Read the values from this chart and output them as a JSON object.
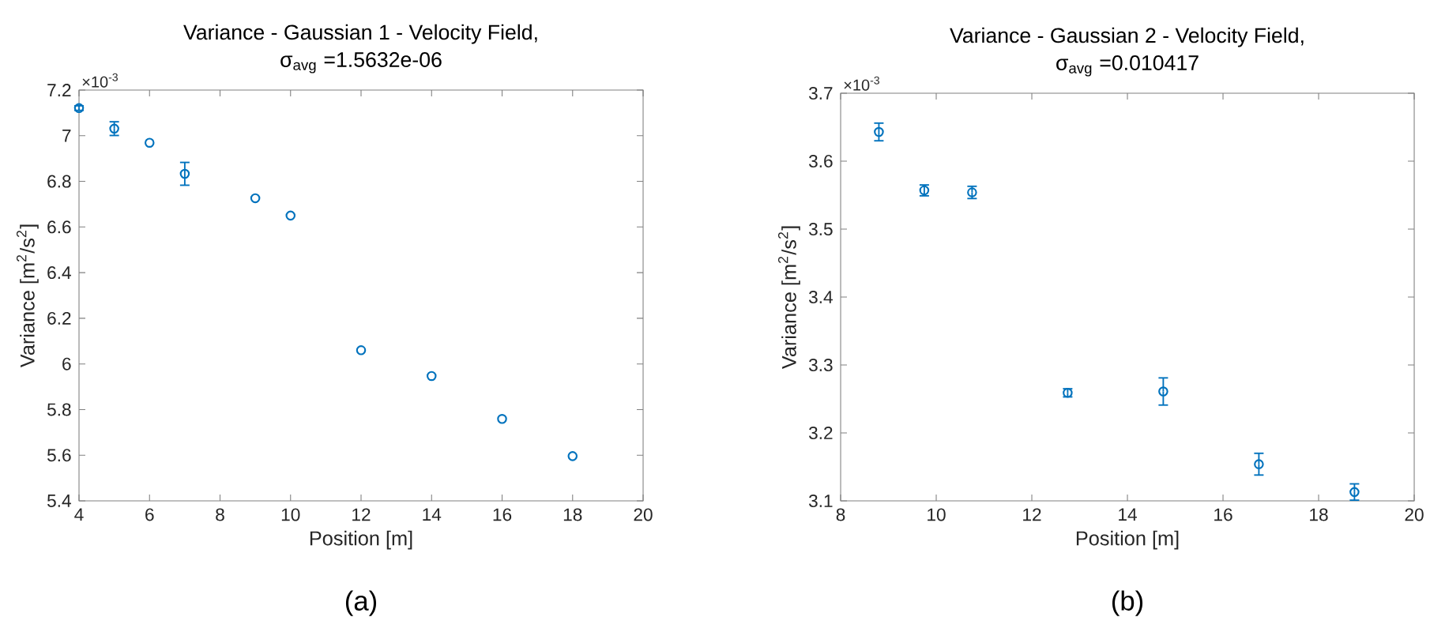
{
  "chart_data": [
    {
      "type": "scatter",
      "title": "Variance -  Gaussian 1 - Velocity Field,",
      "subtitle": "σ$_{avg}$ =1.5632e-06",
      "xlabel": "Position [m]",
      "ylabel": "Variance [m$^{2}$/s$^{2}$]",
      "x": [
        4,
        5,
        6,
        7,
        9,
        10,
        12,
        14,
        16,
        18
      ],
      "series": [
        {
          "color": "#0072bd",
          "values": [
            7.121,
            7.031,
            6.969,
            6.833,
            6.726,
            6.65,
            6.06,
            5.947,
            5.759,
            5.596
          ],
          "errors": [
            0.01,
            0.03,
            null,
            0.05,
            null,
            null,
            null,
            null,
            null,
            null
          ]
        }
      ],
      "xlim": [
        4,
        20
      ],
      "xticks": [
        4,
        6,
        8,
        10,
        12,
        14,
        16,
        18,
        20
      ],
      "ylim": [
        5.4,
        7.2
      ],
      "yticks": [
        5.4,
        5.6,
        5.8,
        6,
        6.2,
        6.4,
        6.6,
        6.8,
        7,
        7.2
      ],
      "marker": "circle",
      "grid": false,
      "annotations": [
        "×10$^{-3}$",
        "(a)"
      ]
    },
    {
      "type": "scatter",
      "title": "Variance - Gaussian 2 - Velocity Field,",
      "subtitle": "σ$_{avg}$ =0.010417",
      "xlabel": "Position [m]",
      "ylabel": "Variance [m$^{2}$/s$^{2}$]",
      "x": [
        8.8,
        9.75,
        10.75,
        12.75,
        14.75,
        16.75,
        18.75
      ],
      "series": [
        {
          "color": "#0072bd",
          "values": [
            3.643,
            3.557,
            3.554,
            3.259,
            3.261,
            3.154,
            3.113
          ],
          "errors": [
            0.013,
            0.008,
            0.009,
            0.006,
            0.02,
            0.016,
            0.012
          ]
        }
      ],
      "xlim": [
        8,
        20
      ],
      "xticks": [
        8,
        10,
        12,
        14,
        16,
        18,
        20
      ],
      "ylim": [
        3.1,
        3.7
      ],
      "yticks": [
        3.1,
        3.2,
        3.3,
        3.4,
        3.5,
        3.6,
        3.7
      ],
      "marker": "circle",
      "grid": false,
      "annotations": [
        "×10$^{-3}$",
        "(b)"
      ]
    }
  ]
}
